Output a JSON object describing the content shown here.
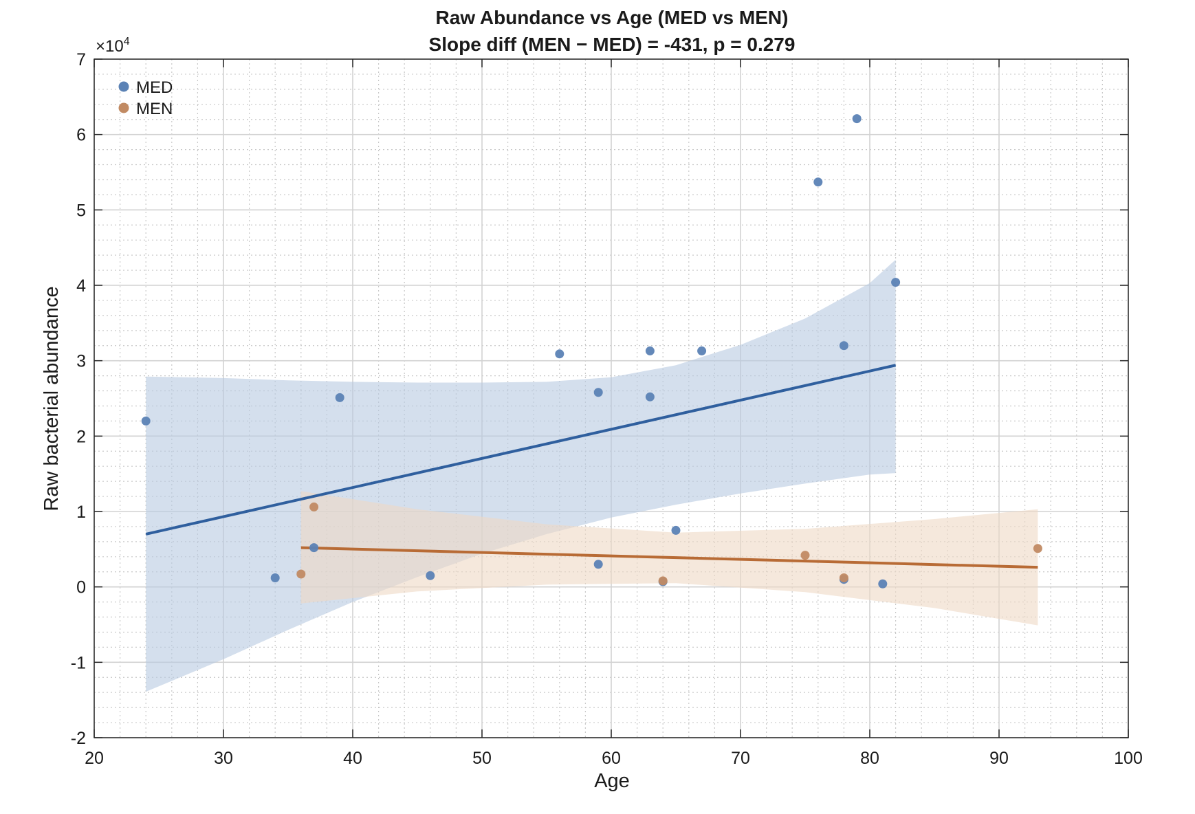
{
  "chart_data": {
    "type": "scatter",
    "title": "Raw Abundance vs Age (MED vs MEN)",
    "subtitle": "Slope diff (MEN − MED) = -431, p = 0.279",
    "xlabel": "Age",
    "ylabel": "Raw bacterial abundance",
    "y_exponent_label": "×10",
    "y_exponent_power": "4",
    "xlim": [
      20,
      100
    ],
    "ylim": [
      -20000,
      70000
    ],
    "x_ticks": [
      20,
      30,
      40,
      50,
      60,
      70,
      80,
      90,
      100
    ],
    "y_ticks": [
      -20000,
      -10000,
      0,
      10000,
      20000,
      30000,
      40000,
      50000,
      60000,
      70000
    ],
    "y_tick_labels": [
      "-2",
      "-1",
      "0",
      "1",
      "2",
      "3",
      "4",
      "5",
      "6",
      "7"
    ],
    "grid": true,
    "minor_grid": true,
    "legend_position": "top-left",
    "series": [
      {
        "name": "MED",
        "color": "#2f5f9e",
        "point_color": "#5b82b5",
        "band_color": "#b8c9e1",
        "points": [
          [
            24,
            22000
          ],
          [
            34,
            1200
          ],
          [
            37,
            5200
          ],
          [
            39,
            25100
          ],
          [
            46,
            1500
          ],
          [
            56,
            30900
          ],
          [
            59,
            25800
          ],
          [
            59,
            3000
          ],
          [
            63,
            31300
          ],
          [
            63,
            25200
          ],
          [
            64,
            700
          ],
          [
            65,
            7500
          ],
          [
            67,
            31300
          ],
          [
            76,
            53700
          ],
          [
            78,
            32000
          ],
          [
            78,
            1000
          ],
          [
            79,
            62100
          ],
          [
            81,
            400
          ],
          [
            82,
            40400
          ]
        ],
        "fit": [
          [
            24,
            7000
          ],
          [
            82,
            29400
          ]
        ],
        "ci_upper": [
          [
            24,
            27900
          ],
          [
            30,
            27700
          ],
          [
            35,
            27400
          ],
          [
            40,
            27200
          ],
          [
            45,
            27100
          ],
          [
            50,
            27100
          ],
          [
            55,
            27200
          ],
          [
            60,
            27800
          ],
          [
            65,
            29400
          ],
          [
            70,
            32100
          ],
          [
            75,
            35600
          ],
          [
            80,
            40300
          ],
          [
            82,
            43400
          ]
        ],
        "ci_lower": [
          [
            24,
            -13900
          ],
          [
            30,
            -9600
          ],
          [
            35,
            -5700
          ],
          [
            40,
            -2000
          ],
          [
            45,
            1300
          ],
          [
            50,
            4400
          ],
          [
            55,
            7000
          ],
          [
            60,
            9200
          ],
          [
            65,
            10900
          ],
          [
            70,
            12400
          ],
          [
            75,
            13700
          ],
          [
            80,
            14900
          ],
          [
            82,
            15100
          ]
        ]
      },
      {
        "name": "MEN",
        "color": "#b86b35",
        "point_color": "#c18a63",
        "band_color": "#efd8c4",
        "points": [
          [
            36,
            1700
          ],
          [
            37,
            10600
          ],
          [
            64,
            800
          ],
          [
            75,
            4200
          ],
          [
            78,
            1200
          ],
          [
            93,
            5100
          ]
        ],
        "fit": [
          [
            36,
            5200
          ],
          [
            93,
            2600
          ]
        ],
        "ci_upper": [
          [
            36,
            12700
          ],
          [
            45,
            10300
          ],
          [
            55,
            8300
          ],
          [
            65,
            7200
          ],
          [
            75,
            7700
          ],
          [
            85,
            9000
          ],
          [
            93,
            10300
          ]
        ],
        "ci_lower": [
          [
            36,
            -2200
          ],
          [
            45,
            -600
          ],
          [
            55,
            300
          ],
          [
            65,
            500
          ],
          [
            75,
            -700
          ],
          [
            85,
            -2800
          ],
          [
            93,
            -5100
          ]
        ]
      }
    ]
  }
}
